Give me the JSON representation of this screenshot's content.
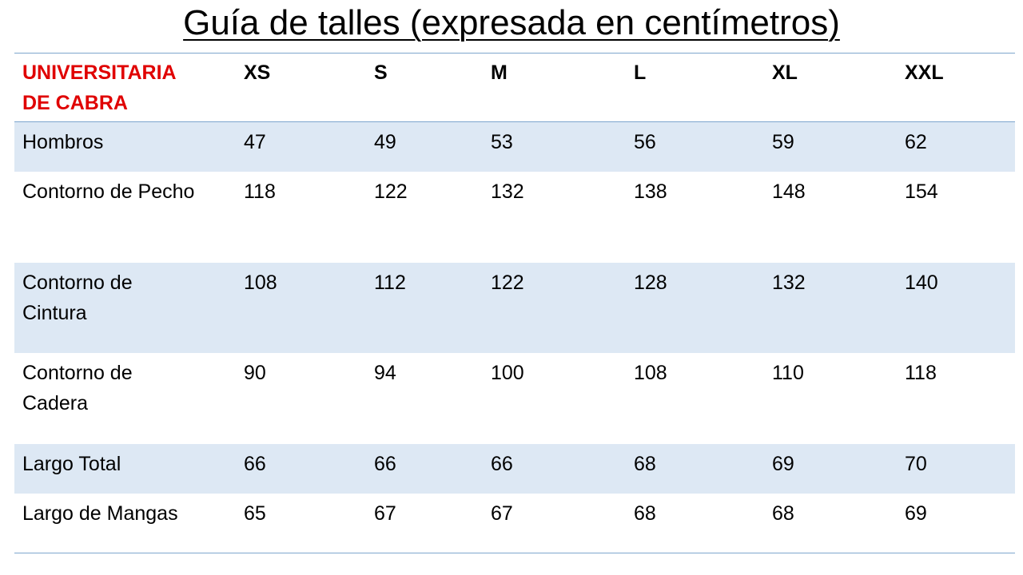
{
  "title": "Guía de talles (expresada en centímetros)",
  "table": {
    "header": [
      "UNIVERSITARIA DE CABRA",
      "XS",
      "S",
      "M",
      "L",
      "XL",
      "XXL"
    ],
    "rows": [
      [
        "Hombros",
        47,
        49,
        53,
        56,
        59,
        62
      ],
      [
        "Contorno de Pecho",
        118,
        122,
        132,
        138,
        148,
        154
      ],
      [
        "Contorno de Cintura",
        108,
        112,
        122,
        128,
        132,
        140
      ],
      [
        "Contorno de Cadera",
        90,
        94,
        100,
        108,
        110,
        118
      ],
      [
        "Largo Total",
        66,
        66,
        66,
        68,
        69,
        70
      ],
      [
        "Largo de Mangas",
        65,
        67,
        67,
        68,
        68,
        69
      ]
    ]
  }
}
